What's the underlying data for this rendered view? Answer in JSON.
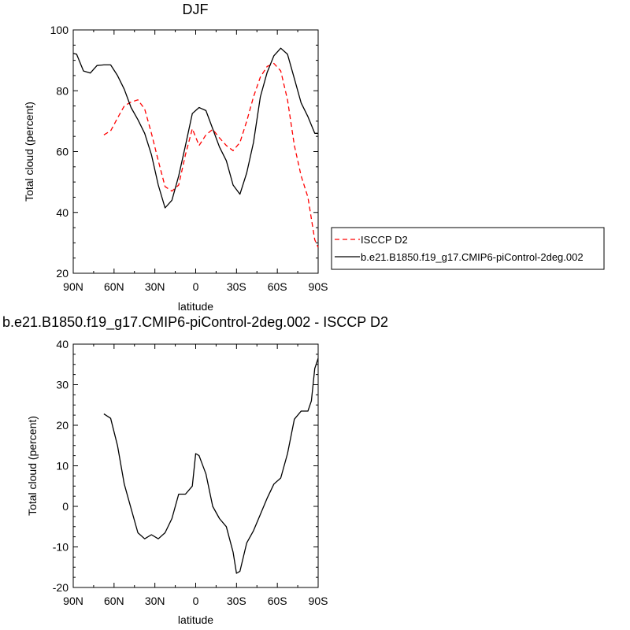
{
  "chart_data": [
    {
      "type": "line",
      "title": "DJF",
      "xlabel": "latitude",
      "ylabel": "Total cloud (percent)",
      "xlim": [
        90,
        -90
      ],
      "ylim": [
        20,
        100
      ],
      "xticks": [
        {
          "v": 90,
          "label": "90N"
        },
        {
          "v": 60,
          "label": "60N"
        },
        {
          "v": 30,
          "label": "30N"
        },
        {
          "v": 0,
          "label": "0"
        },
        {
          "v": -30,
          "label": "30S"
        },
        {
          "v": -60,
          "label": "60S"
        },
        {
          "v": -90,
          "label": "90S"
        }
      ],
      "yticks": [
        20,
        40,
        60,
        80,
        100
      ],
      "legend": "right",
      "series": [
        {
          "name": "ISCCP D2",
          "color": "#ff0000",
          "dash": "dashed",
          "points": [
            [
              67.5,
              65.5
            ],
            [
              62.5,
              66.8
            ],
            [
              57.5,
              71.0
            ],
            [
              52.5,
              75.0
            ],
            [
              47.5,
              76.3
            ],
            [
              42.5,
              77.0
            ],
            [
              37.5,
              74.0
            ],
            [
              32.5,
              66.0
            ],
            [
              27.5,
              57.0
            ],
            [
              22.5,
              48.5
            ],
            [
              17.5,
              47.0
            ],
            [
              12.5,
              49.0
            ],
            [
              7.5,
              59.0
            ],
            [
              2.5,
              67.5
            ],
            [
              -2.5,
              62.0
            ],
            [
              -7.5,
              65.5
            ],
            [
              -12.5,
              67.3
            ],
            [
              -17.5,
              64.5
            ],
            [
              -22.5,
              62.0
            ],
            [
              -27.5,
              60.3
            ],
            [
              -32.5,
              63.0
            ],
            [
              -37.5,
              70.0
            ],
            [
              -42.5,
              78.0
            ],
            [
              -47.5,
              84.5
            ],
            [
              -52.5,
              88.0
            ],
            [
              -57.5,
              89.0
            ],
            [
              -62.5,
              86.5
            ],
            [
              -67.5,
              77.0
            ],
            [
              -72.5,
              62.0
            ],
            [
              -77.5,
              52.0
            ],
            [
              -82.5,
              45.0
            ],
            [
              -87.5,
              31.0
            ],
            [
              -90.0,
              28.5
            ]
          ]
        },
        {
          "name": "b.e21.B1850.f19_g17.CMIP6-piControl-2deg.002",
          "color": "#000000",
          "dash": "solid",
          "points": [
            [
              90.0,
              92.3
            ],
            [
              87.5,
              92.0
            ],
            [
              82.5,
              86.5
            ],
            [
              77.5,
              85.8
            ],
            [
              72.5,
              88.3
            ],
            [
              67.5,
              88.5
            ],
            [
              62.5,
              88.5
            ],
            [
              57.5,
              85.0
            ],
            [
              52.5,
              80.5
            ],
            [
              47.5,
              74.5
            ],
            [
              42.5,
              70.5
            ],
            [
              37.5,
              66.0
            ],
            [
              32.5,
              59.0
            ],
            [
              27.5,
              49.0
            ],
            [
              22.5,
              41.5
            ],
            [
              17.5,
              44.0
            ],
            [
              12.5,
              52.0
            ],
            [
              7.5,
              62.0
            ],
            [
              2.5,
              72.5
            ],
            [
              -2.5,
              74.5
            ],
            [
              -7.5,
              73.5
            ],
            [
              -12.5,
              67.5
            ],
            [
              -17.5,
              61.5
            ],
            [
              -22.5,
              57.0
            ],
            [
              -27.5,
              49.0
            ],
            [
              -32.5,
              46.0
            ],
            [
              -37.5,
              53.0
            ],
            [
              -42.5,
              63.0
            ],
            [
              -47.5,
              78.0
            ],
            [
              -52.5,
              86.0
            ],
            [
              -57.5,
              91.5
            ],
            [
              -62.5,
              94.0
            ],
            [
              -67.5,
              92.0
            ],
            [
              -72.5,
              84.0
            ],
            [
              -77.5,
              76.0
            ],
            [
              -82.5,
              71.5
            ],
            [
              -87.5,
              66.0
            ],
            [
              -90.0,
              66.0
            ]
          ]
        }
      ]
    },
    {
      "type": "line",
      "title": "b.e21.B1850.f19_g17.CMIP6-piControl-2deg.002 - ISCCP D2",
      "xlabel": "latitude",
      "ylabel": "Total cloud (percent)",
      "xlim": [
        90,
        -90
      ],
      "ylim": [
        -20,
        40
      ],
      "xticks": [
        {
          "v": 90,
          "label": "90N"
        },
        {
          "v": 60,
          "label": "60N"
        },
        {
          "v": 30,
          "label": "30N"
        },
        {
          "v": 0,
          "label": "0"
        },
        {
          "v": -30,
          "label": "30S"
        },
        {
          "v": -60,
          "label": "60S"
        },
        {
          "v": -90,
          "label": "90S"
        }
      ],
      "yticks": [
        -20,
        -10,
        0,
        10,
        20,
        30,
        40
      ],
      "series": [
        {
          "color": "#000000",
          "dash": "solid",
          "points": [
            [
              67.5,
              22.8
            ],
            [
              62.5,
              21.7
            ],
            [
              57.5,
              15.0
            ],
            [
              52.5,
              5.5
            ],
            [
              47.5,
              -0.5
            ],
            [
              42.5,
              -6.5
            ],
            [
              37.5,
              -8.0
            ],
            [
              32.5,
              -7.0
            ],
            [
              27.5,
              -8.0
            ],
            [
              22.5,
              -6.5
            ],
            [
              17.5,
              -3.0
            ],
            [
              12.5,
              3.0
            ],
            [
              7.5,
              3.0
            ],
            [
              2.5,
              5.0
            ],
            [
              0.0,
              13.0
            ],
            [
              -2.5,
              12.5
            ],
            [
              -7.5,
              8.0
            ],
            [
              -12.5,
              0.0
            ],
            [
              -17.5,
              -3.0
            ],
            [
              -22.5,
              -5.0
            ],
            [
              -27.5,
              -11.3
            ],
            [
              -30.0,
              -16.5
            ],
            [
              -32.5,
              -16.0
            ],
            [
              -37.5,
              -9.0
            ],
            [
              -42.5,
              -6.0
            ],
            [
              -47.5,
              -2.0
            ],
            [
              -52.5,
              2.0
            ],
            [
              -57.5,
              5.5
            ],
            [
              -62.5,
              7.0
            ],
            [
              -67.5,
              13.0
            ],
            [
              -72.5,
              21.5
            ],
            [
              -77.5,
              23.5
            ],
            [
              -82.5,
              23.5
            ],
            [
              -85.0,
              26.0
            ],
            [
              -87.5,
              34.0
            ],
            [
              -90.0,
              36.5
            ]
          ]
        }
      ]
    }
  ]
}
